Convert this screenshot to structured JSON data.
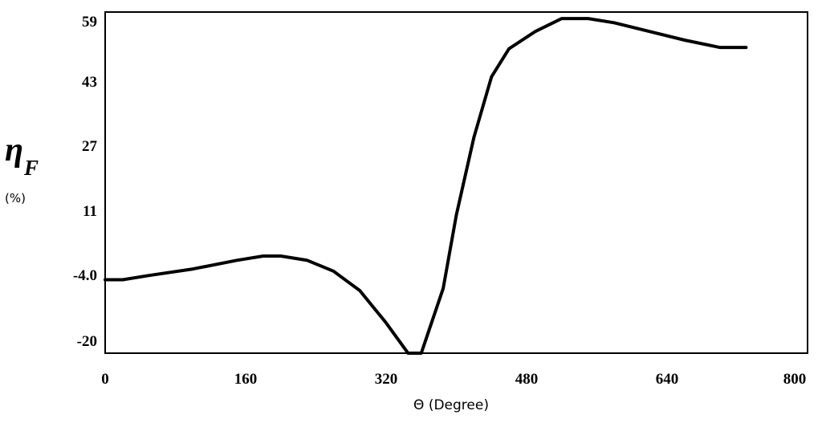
{
  "chart_data": {
    "type": "line",
    "title": "",
    "xlabel": "Θ (Degree)",
    "ylabel_symbol": "η",
    "ylabel_subscript": "F",
    "ylabel_unit": "(%)",
    "xlim": [
      0,
      800
    ],
    "ylim": [
      -20,
      59
    ],
    "x_ticks": [
      "0",
      "160",
      "320",
      "480",
      "640",
      "800"
    ],
    "y_ticks": [
      "59",
      "43",
      "27",
      "11",
      "-4.0",
      "-20"
    ],
    "y_tick_values": [
      59,
      43,
      27,
      11,
      -4,
      -20
    ],
    "x_tick_values": [
      0,
      160,
      320,
      480,
      640,
      800
    ],
    "grid": false,
    "legend": "none",
    "colors": {
      "line": "#000000",
      "axes": "#000000",
      "background": "#ffffff"
    },
    "series": [
      {
        "x": [
          0,
          20,
          50,
          100,
          150,
          180,
          200,
          230,
          260,
          290,
          320,
          345,
          360,
          370,
          385,
          400,
          420,
          440,
          460,
          490,
          520,
          550,
          580,
          620,
          660,
          700,
          730
        ],
        "y": [
          -3.0,
          -3.0,
          -2.0,
          -0.5,
          1.5,
          2.5,
          2.5,
          1.5,
          -1.0,
          -5.5,
          -13.0,
          -20.0,
          -20.0,
          -14.0,
          -5.0,
          12.0,
          30.0,
          44.0,
          50.5,
          54.5,
          57.5,
          57.5,
          56.5,
          54.5,
          52.5,
          50.8,
          50.8
        ]
      }
    ]
  }
}
